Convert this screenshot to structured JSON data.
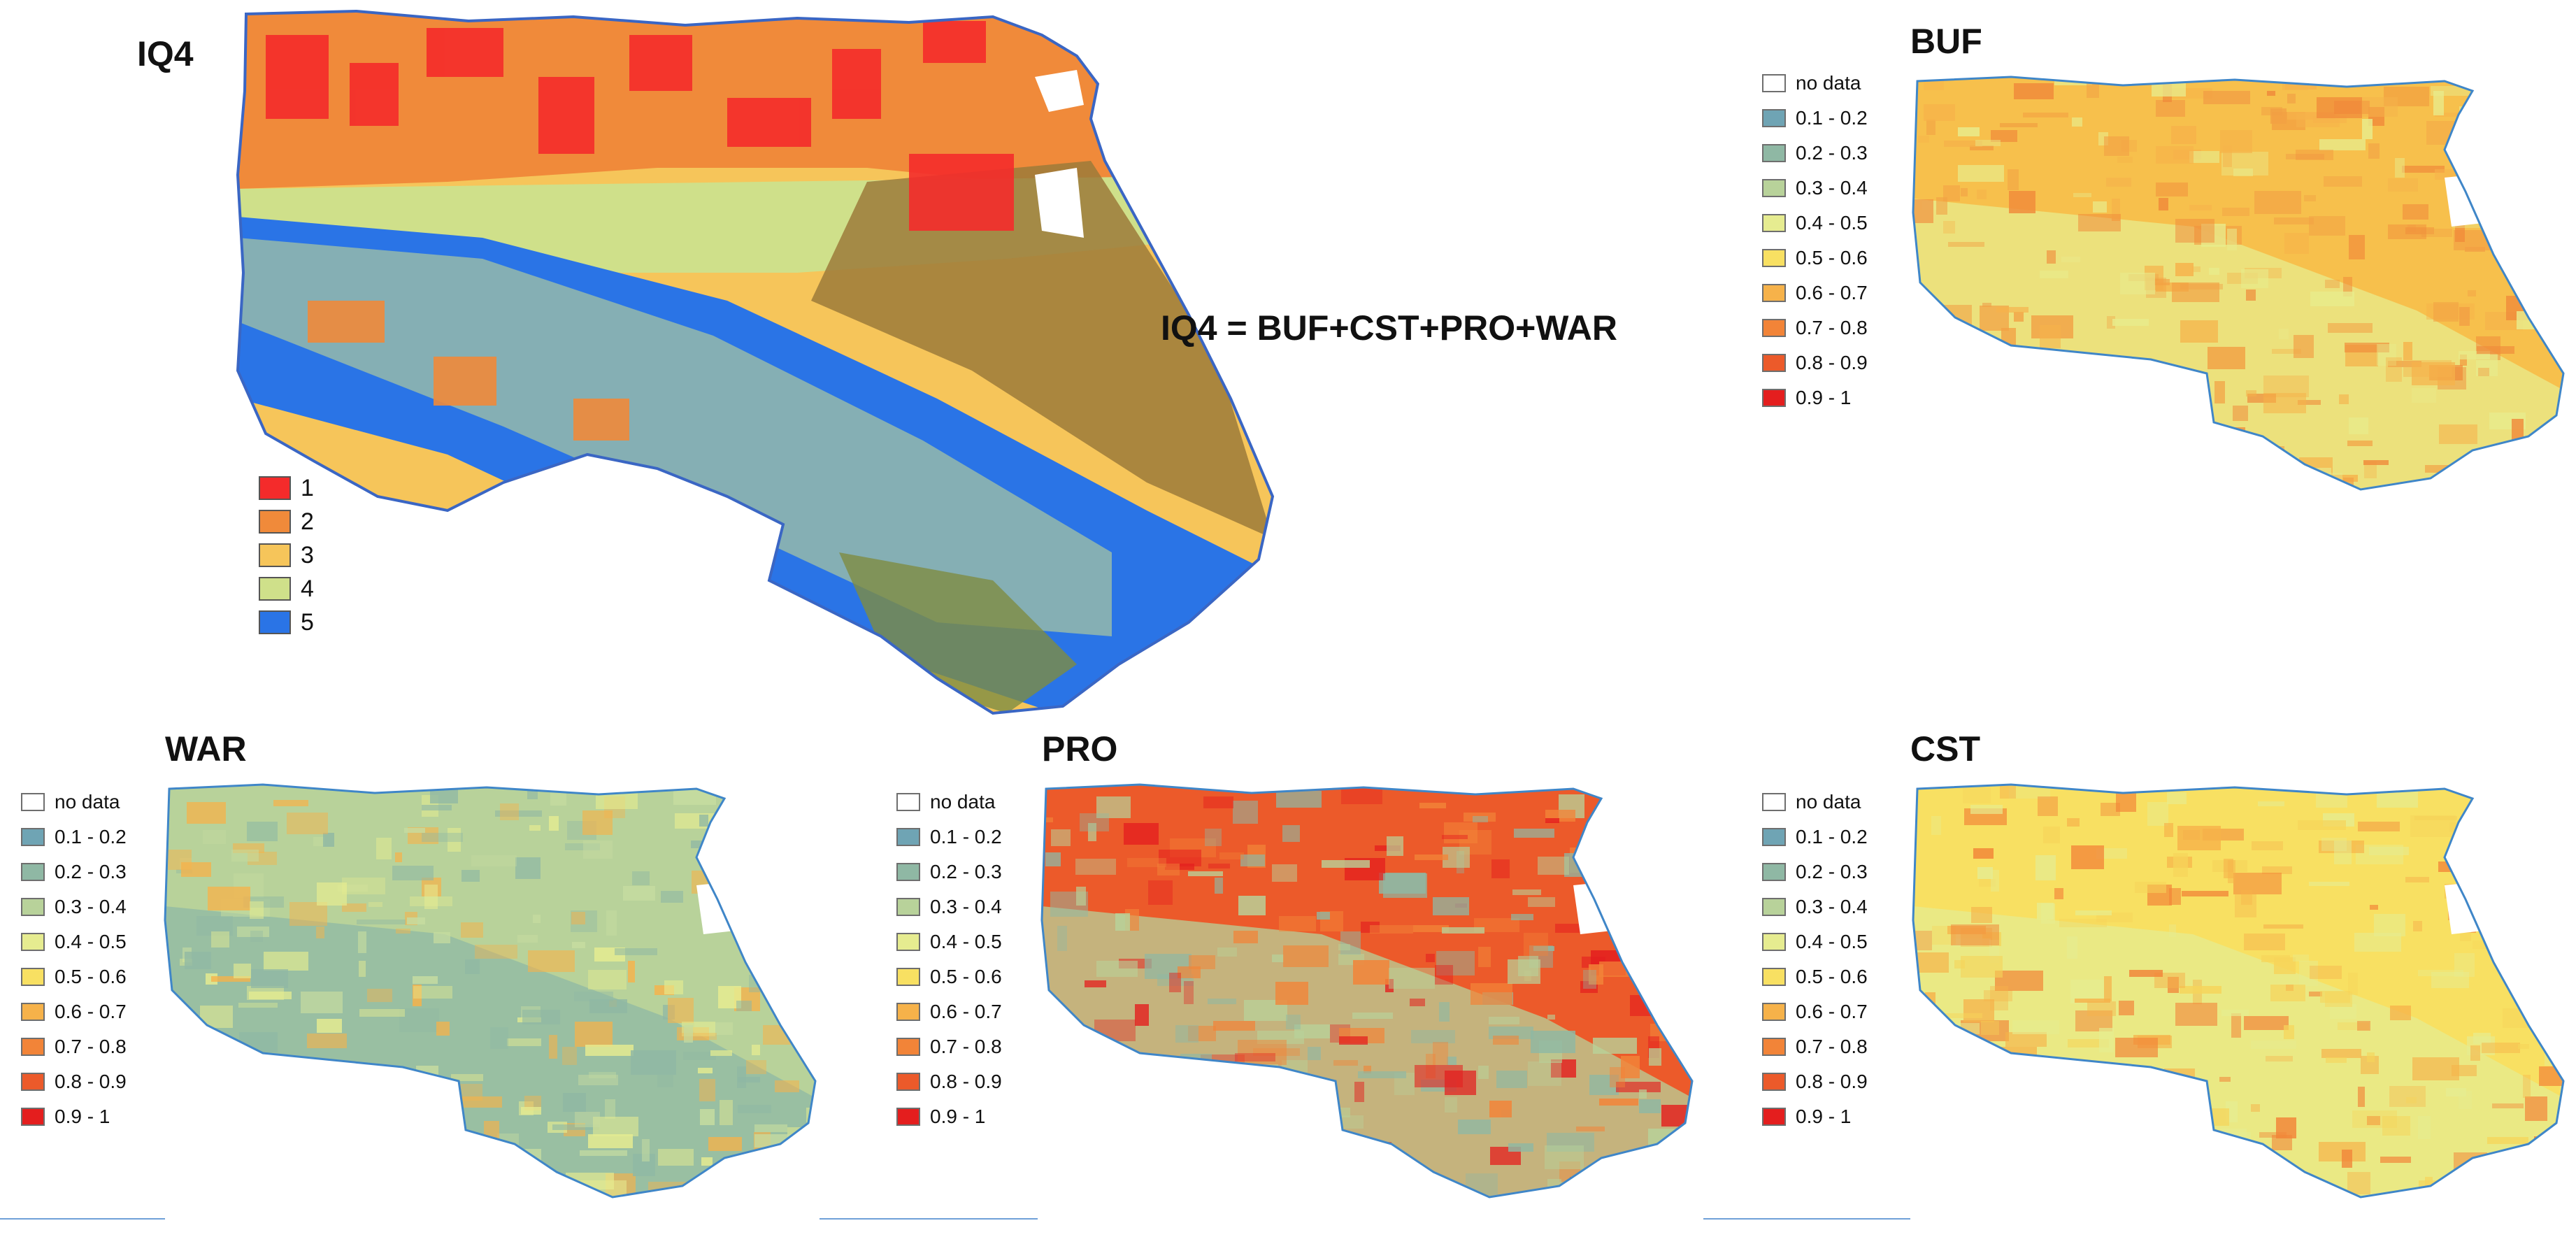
{
  "formula": "IQ4 = BUF+CST+PRO+WAR",
  "iq4": {
    "title": "IQ4",
    "legend": [
      {
        "label": "1",
        "color": "#f42b2b"
      },
      {
        "label": "2",
        "color": "#f08a3a"
      },
      {
        "label": "3",
        "color": "#f6c55a"
      },
      {
        "label": "4",
        "color": "#cfe08a"
      },
      {
        "label": "5",
        "color": "#2a74e6"
      }
    ]
  },
  "class_legend": [
    {
      "label": "no data",
      "color": "#ffffff"
    },
    {
      "label": "0.1 - 0.2",
      "color": "#6fa4b4"
    },
    {
      "label": "0.2 - 0.3",
      "color": "#8fb8a4"
    },
    {
      "label": "0.3 - 0.4",
      "color": "#b8d29a"
    },
    {
      "label": "0.4 - 0.5",
      "color": "#e6ec90"
    },
    {
      "label": "0.5 - 0.6",
      "color": "#f8e062"
    },
    {
      "label": "0.6 - 0.7",
      "color": "#f6b24a"
    },
    {
      "label": "0.7 - 0.8",
      "color": "#f28438"
    },
    {
      "label": "0.8 - 0.9",
      "color": "#ec5a2a"
    },
    {
      "label": "0.9 - 1",
      "color": "#e41e1e"
    }
  ],
  "maps": [
    {
      "id": "buf",
      "title": "BUF",
      "palette": [
        "#f7c04c",
        "#f6b24a",
        "#f2a044",
        "#e8ec8c",
        "#f08a3a"
      ]
    },
    {
      "id": "war",
      "title": "WAR",
      "palette": [
        "#b8d29a",
        "#c6dca0",
        "#e6ec90",
        "#8fb8a4",
        "#f6b24a"
      ]
    },
    {
      "id": "pro",
      "title": "PRO",
      "palette": [
        "#ec5a2a",
        "#e41e1e",
        "#f28438",
        "#b8d29a",
        "#8fb8a4"
      ]
    },
    {
      "id": "cst",
      "title": "CST",
      "palette": [
        "#f8e062",
        "#f6d45a",
        "#f6b24a",
        "#e6ec90",
        "#f28438"
      ]
    }
  ]
}
